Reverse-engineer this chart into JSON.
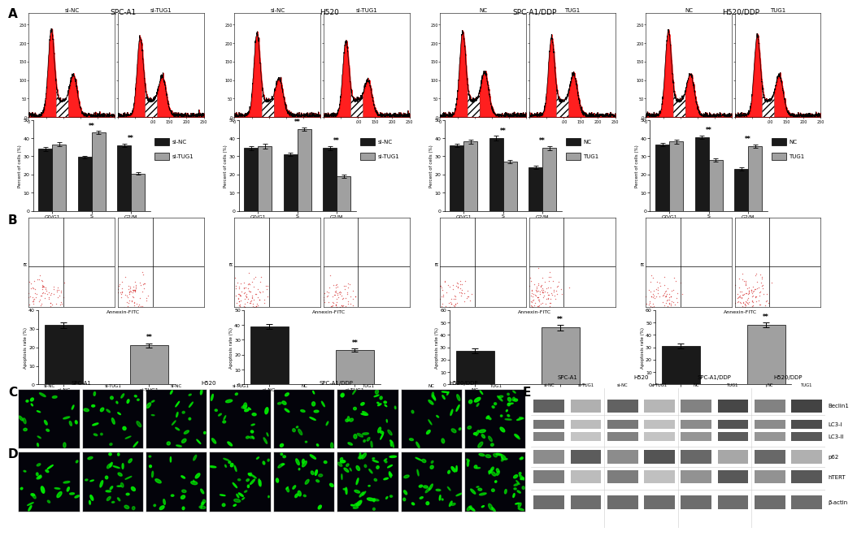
{
  "group_titles": [
    "SPC-A1",
    "H520",
    "SPC-A1/DDP",
    "H520/DDP"
  ],
  "flow_subtitles_A": [
    [
      "si-NC",
      "si-TUG1"
    ],
    [
      "si-NC",
      "si-TUG1"
    ],
    [
      "NC",
      "TUG1"
    ],
    [
      "NC",
      "TUG1"
    ]
  ],
  "bar_A_data": [
    {
      "groups": [
        "G0/G1",
        "S",
        "G2/M"
      ],
      "v1": [
        34.0,
        29.5,
        36.0
      ],
      "e1": [
        1.0,
        0.8,
        1.0
      ],
      "v2": [
        36.5,
        43.0,
        20.5
      ],
      "e2": [
        1.2,
        0.9,
        0.8
      ],
      "ylim": 50,
      "ylabel": "Percent of cells (%)",
      "sig_idx": [
        1,
        2
      ],
      "leg": [
        "si-NC",
        "si-TUG1"
      ]
    },
    {
      "groups": [
        "G0/G1",
        "S",
        "G2/M"
      ],
      "v1": [
        34.5,
        31.0,
        34.5
      ],
      "e1": [
        1.0,
        0.8,
        1.0
      ],
      "v2": [
        35.5,
        45.0,
        19.0
      ],
      "e2": [
        1.2,
        0.9,
        0.8
      ],
      "ylim": 50,
      "ylabel": "Percent of cells (%)",
      "sig_idx": [
        1,
        2
      ],
      "leg": [
        "si-NC",
        "si-TUG1"
      ]
    },
    {
      "groups": [
        "G0/G1",
        "S",
        "G2/M"
      ],
      "v1": [
        36.0,
        40.0,
        24.0
      ],
      "e1": [
        1.0,
        1.2,
        1.0
      ],
      "v2": [
        38.0,
        27.0,
        34.5
      ],
      "e2": [
        1.0,
        1.0,
        1.0
      ],
      "ylim": 50,
      "ylabel": "Percent of cells (%)",
      "sig_idx": [
        1,
        2
      ],
      "leg": [
        "NC",
        "TUG1"
      ]
    },
    {
      "groups": [
        "G0/G1",
        "S",
        "G2/M"
      ],
      "v1": [
        36.5,
        40.5,
        23.0
      ],
      "e1": [
        1.0,
        1.0,
        1.0
      ],
      "v2": [
        38.0,
        28.0,
        35.5
      ],
      "e2": [
        1.0,
        1.0,
        1.0
      ],
      "ylim": 50,
      "ylabel": "Percent of cells (%)",
      "sig_idx": [
        1,
        2
      ],
      "leg": [
        "NC",
        "TUG1"
      ]
    }
  ],
  "bar_B_data": [
    {
      "labels": [
        "si-NC",
        "si-TUG1"
      ],
      "values": [
        32.0,
        21.0
      ],
      "errors": [
        1.5,
        1.2
      ],
      "ylim": 40,
      "sig_idx": 1
    },
    {
      "labels": [
        "si-NC",
        "si-TUG1"
      ],
      "values": [
        39.0,
        23.0
      ],
      "errors": [
        1.8,
        1.2
      ],
      "ylim": 50,
      "sig_idx": 1
    },
    {
      "labels": [
        "NC",
        "TUG1"
      ],
      "values": [
        27.0,
        46.0
      ],
      "errors": [
        2.0,
        2.2
      ],
      "ylim": 60,
      "sig_idx": 1
    },
    {
      "labels": [
        "NC",
        "TUG1"
      ],
      "values": [
        31.0,
        48.0
      ],
      "errors": [
        2.2,
        2.0
      ],
      "ylim": 60,
      "sig_idx": 1
    }
  ],
  "color_dark": "#1a1a1a",
  "color_gray": "#a0a0a0",
  "scatter_color": "#cc0000",
  "wb_band_intensities": [
    [
      0.75,
      0.38,
      0.75,
      0.35,
      0.6,
      0.88,
      0.6,
      0.9
    ],
    [
      0.65,
      0.32,
      0.65,
      0.3,
      0.55,
      0.82,
      0.55,
      0.85
    ],
    [
      0.6,
      0.28,
      0.6,
      0.28,
      0.5,
      0.78,
      0.5,
      0.8
    ],
    [
      0.55,
      0.78,
      0.55,
      0.82,
      0.72,
      0.42,
      0.72,
      0.38
    ],
    [
      0.62,
      0.32,
      0.62,
      0.3,
      0.52,
      0.8,
      0.52,
      0.8
    ],
    [
      0.7,
      0.7,
      0.7,
      0.7,
      0.7,
      0.7,
      0.7,
      0.7
    ]
  ],
  "wb_proteins": [
    "Beclin1",
    "LC3-I",
    "LC3-II",
    "p62",
    "hTERT",
    "β-actin"
  ],
  "wb_col_groups": [
    "SPC-A1",
    "H520",
    "SPC-A1/DDP",
    "H520/DDP"
  ],
  "wb_col_sublabels": [
    "si-NC",
    "si-TUG1",
    "si-NC",
    "si-TUG1",
    "NC",
    "TUG1",
    "NC",
    "TUG1"
  ]
}
